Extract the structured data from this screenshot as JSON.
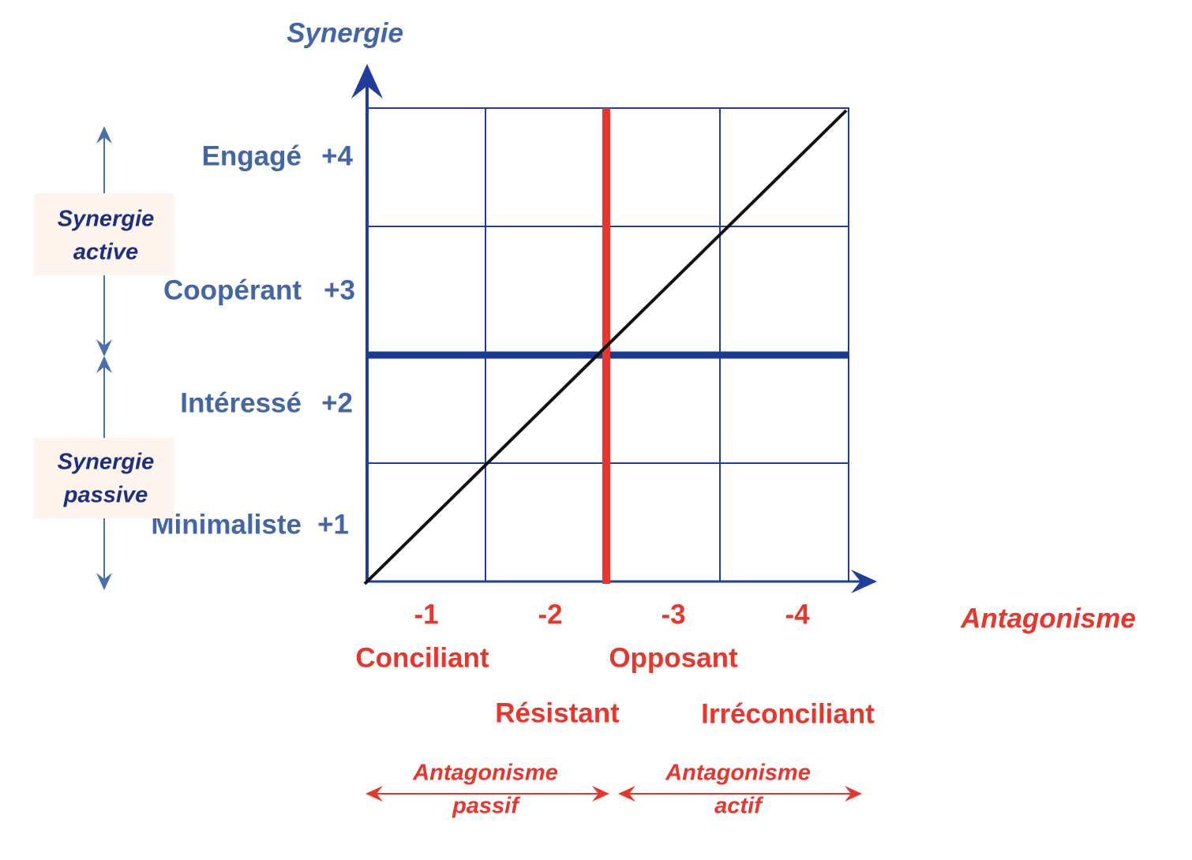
{
  "axes": {
    "y_title": "Synergie",
    "x_title": "Antagonisme"
  },
  "y_levels": [
    {
      "label": "Engagé",
      "score": "+4"
    },
    {
      "label": "Coopérant",
      "score": "+3"
    },
    {
      "label": "Intéressé",
      "score": "+2"
    },
    {
      "label": "Minimaliste",
      "score": "+1"
    }
  ],
  "x_levels": [
    {
      "score": "-1",
      "label": "Conciliant"
    },
    {
      "score": "-2",
      "label": "Résistant"
    },
    {
      "score": "-3",
      "label": "Opposant"
    },
    {
      "score": "-4",
      "label": "Irréconciliant"
    }
  ],
  "left_groups": [
    {
      "lines": [
        "Synergie",
        "active"
      ]
    },
    {
      "lines": [
        "Synergie",
        "passive"
      ]
    }
  ],
  "bottom_groups": [
    {
      "lines": [
        "Antagonisme",
        "passif"
      ]
    },
    {
      "lines": [
        "Antagonisme",
        "actif"
      ]
    }
  ]
}
